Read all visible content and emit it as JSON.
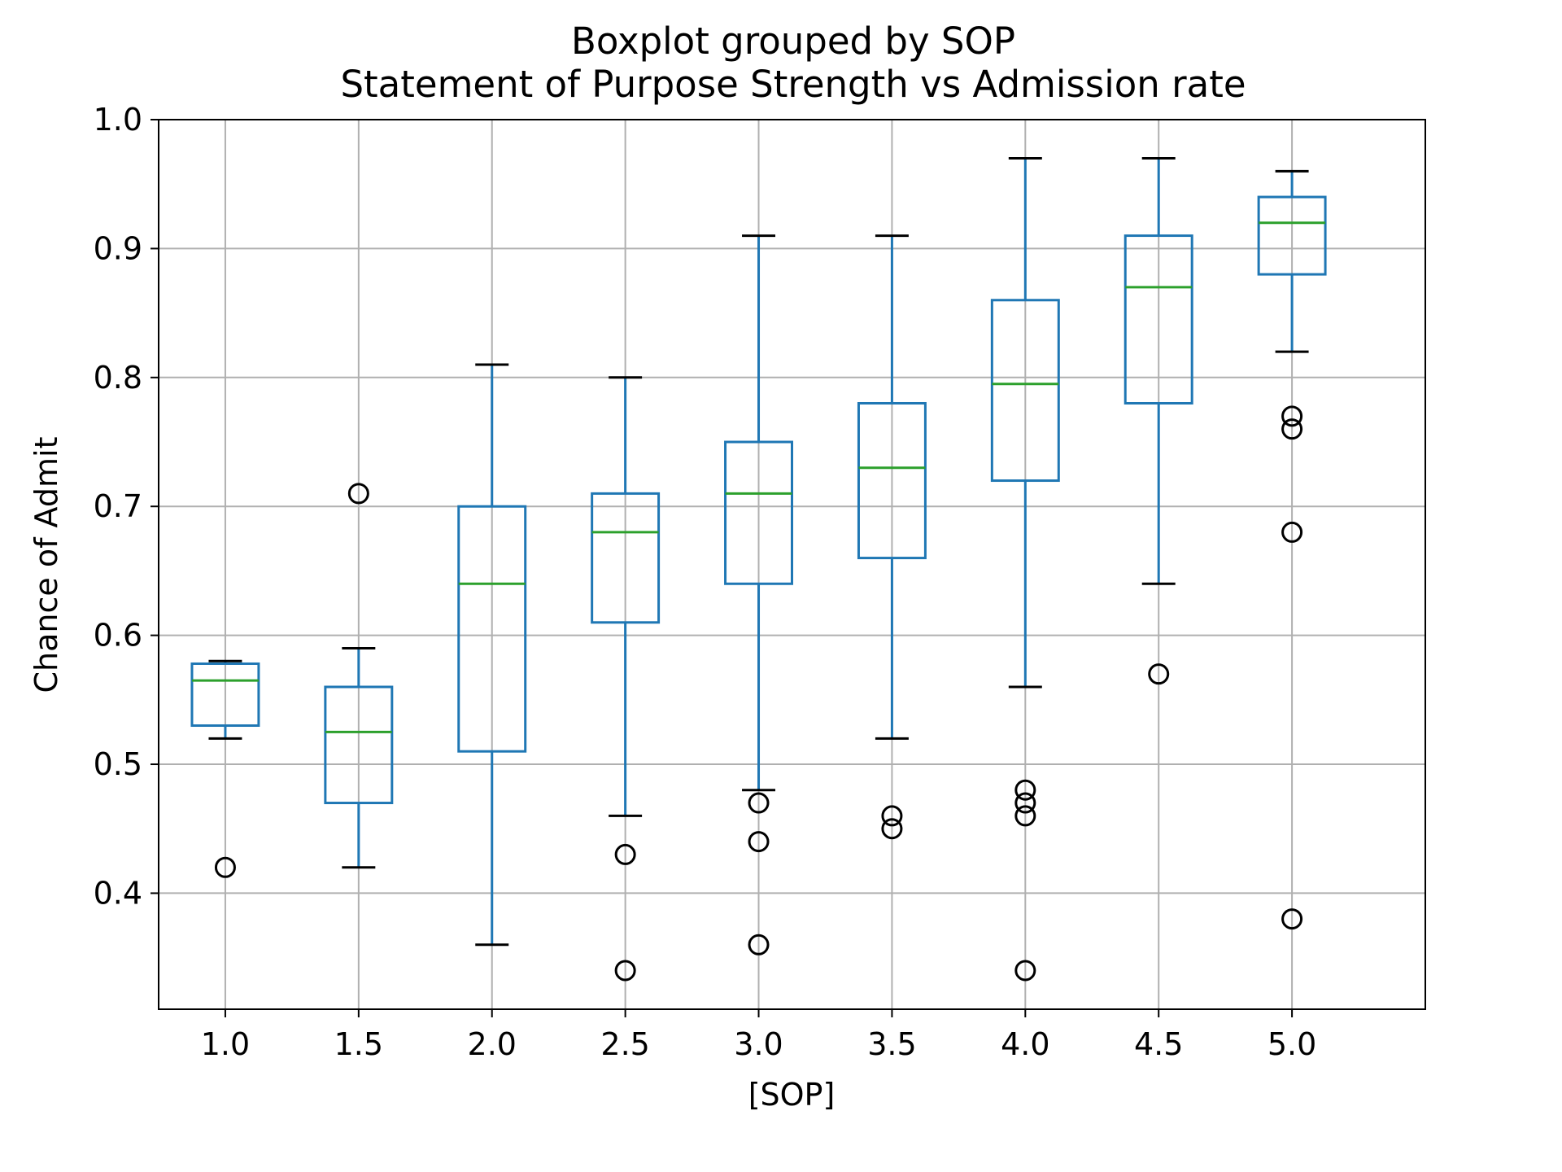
{
  "chart_data": {
    "type": "boxplot",
    "title": "Boxplot grouped by SOP",
    "subtitle": "Statement of Purpose Strength vs Admission rate",
    "xlabel": "[SOP]",
    "ylabel": "Chance of Admit",
    "ylim": [
      0.31,
      1.0
    ],
    "yticks": [
      "0.4",
      "0.5",
      "0.6",
      "0.7",
      "0.8",
      "0.9",
      "1.0"
    ],
    "grid": true,
    "colors": {
      "box": "#1f77b4",
      "median": "#2ca02c",
      "whisker_cap": "#000000",
      "flier": "#000000",
      "grid": "#b0b0b0"
    },
    "categories": [
      "1.0",
      "1.5",
      "2.0",
      "2.5",
      "3.0",
      "3.5",
      "4.0",
      "4.5",
      "5.0"
    ],
    "boxes": [
      {
        "label": "1.0",
        "whislo": 0.52,
        "q1": 0.53,
        "med": 0.565,
        "q3": 0.578,
        "whishi": 0.58,
        "fliers": [
          0.42
        ]
      },
      {
        "label": "1.5",
        "whislo": 0.42,
        "q1": 0.47,
        "med": 0.525,
        "q3": 0.56,
        "whishi": 0.59,
        "fliers": [
          0.71
        ]
      },
      {
        "label": "2.0",
        "whislo": 0.36,
        "q1": 0.51,
        "med": 0.64,
        "q3": 0.7,
        "whishi": 0.81,
        "fliers": []
      },
      {
        "label": "2.5",
        "whislo": 0.46,
        "q1": 0.61,
        "med": 0.68,
        "q3": 0.71,
        "whishi": 0.8,
        "fliers": [
          0.43,
          0.34
        ]
      },
      {
        "label": "3.0",
        "whislo": 0.48,
        "q1": 0.64,
        "med": 0.71,
        "q3": 0.75,
        "whishi": 0.91,
        "fliers": [
          0.47,
          0.44,
          0.36
        ]
      },
      {
        "label": "3.5",
        "whislo": 0.52,
        "q1": 0.66,
        "med": 0.73,
        "q3": 0.78,
        "whishi": 0.91,
        "fliers": [
          0.46,
          0.45
        ]
      },
      {
        "label": "4.0",
        "whislo": 0.56,
        "q1": 0.72,
        "med": 0.795,
        "q3": 0.86,
        "whishi": 0.97,
        "fliers": [
          0.48,
          0.47,
          0.46,
          0.34
        ]
      },
      {
        "label": "4.5",
        "whislo": 0.64,
        "q1": 0.78,
        "med": 0.87,
        "q3": 0.91,
        "whishi": 0.97,
        "fliers": [
          0.57
        ]
      },
      {
        "label": "5.0",
        "whislo": 0.82,
        "q1": 0.88,
        "med": 0.92,
        "q3": 0.94,
        "whishi": 0.96,
        "fliers": [
          0.77,
          0.76,
          0.68,
          0.38
        ]
      }
    ]
  }
}
